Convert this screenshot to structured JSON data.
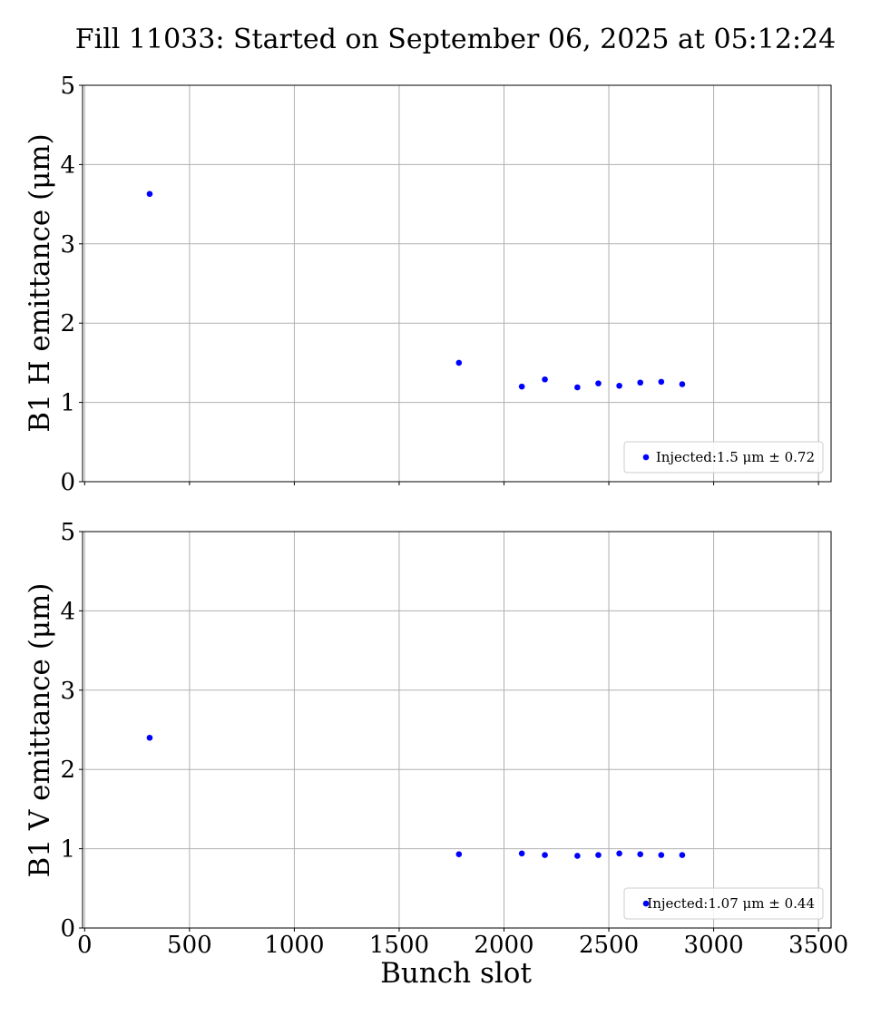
{
  "title": "Fill 11033: Started on September 06, 2025 at 05:12:24",
  "chart_data": [
    {
      "type": "scatter",
      "ylabel": "B1 H emittance (μm)",
      "xlabel": "",
      "xlim": [
        -10,
        3560
      ],
      "ylim": [
        0,
        5
      ],
      "xticks": [
        0,
        500,
        1000,
        1500,
        2000,
        2500,
        3000,
        3500
      ],
      "yticks": [
        0,
        1,
        2,
        3,
        4,
        5
      ],
      "show_xtick_labels": false,
      "grid": true,
      "legend_position": "lower-right",
      "color": "#0000ff",
      "series": [
        {
          "name": "Injected:1.5 μm ± 0.72",
          "x": [
            310,
            1785,
            2085,
            2195,
            2350,
            2450,
            2550,
            2650,
            2750,
            2850
          ],
          "y": [
            3.63,
            1.5,
            1.2,
            1.29,
            1.19,
            1.24,
            1.21,
            1.25,
            1.26,
            1.23
          ]
        }
      ]
    },
    {
      "type": "scatter",
      "ylabel": "B1 V emittance (μm)",
      "xlabel": "Bunch slot",
      "xlim": [
        -10,
        3560
      ],
      "ylim": [
        0,
        5
      ],
      "xticks": [
        0,
        500,
        1000,
        1500,
        2000,
        2500,
        3000,
        3500
      ],
      "yticks": [
        0,
        1,
        2,
        3,
        4,
        5
      ],
      "show_xtick_labels": true,
      "grid": true,
      "legend_position": "lower-right",
      "color": "#0000ff",
      "series": [
        {
          "name": "Injected:1.07 μm ± 0.44",
          "x": [
            310,
            1785,
            2085,
            2195,
            2350,
            2450,
            2550,
            2650,
            2750,
            2850
          ],
          "y": [
            2.4,
            0.93,
            0.94,
            0.92,
            0.91,
            0.92,
            0.94,
            0.93,
            0.92,
            0.92
          ]
        }
      ]
    }
  ]
}
